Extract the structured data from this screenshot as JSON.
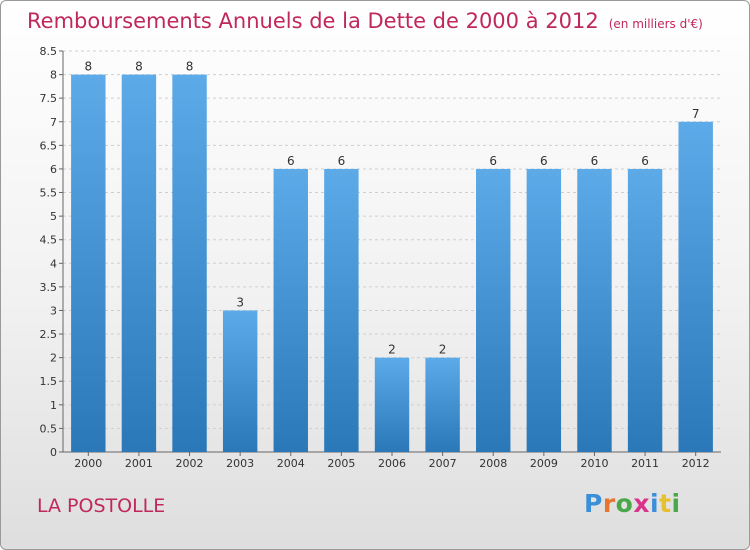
{
  "header": {
    "title": "Remboursements Annuels de la Dette de 2000 à 2012",
    "unit": "(en milliers d'€)"
  },
  "footer": {
    "commune": "LA POSTOLLE",
    "logo": [
      "P",
      "r",
      "o",
      "x",
      "i",
      "t",
      "i"
    ]
  },
  "colors": {
    "title": "#c0285c",
    "bar_light": "#5caae8",
    "bar_dark": "#2a78b8"
  },
  "chart_data": {
    "type": "bar",
    "title": "Remboursements Annuels de la Dette de 2000 à 2012",
    "subtitle": "(en milliers d'€)",
    "xlabel": "",
    "ylabel": "",
    "categories": [
      "2000",
      "2001",
      "2002",
      "2003",
      "2004",
      "2005",
      "2006",
      "2007",
      "2008",
      "2009",
      "2010",
      "2011",
      "2012"
    ],
    "values": [
      8,
      8,
      8,
      3,
      6,
      6,
      2,
      2,
      6,
      6,
      6,
      6,
      7
    ],
    "data_labels": [
      "8",
      "8",
      "8",
      "3",
      "6",
      "6",
      "2",
      "2",
      "6",
      "6",
      "6",
      "6",
      "7"
    ],
    "ylim": [
      0,
      8.5
    ],
    "yticks": [
      "0",
      "0.5",
      "1",
      "1.5",
      "2",
      "2.5",
      "3",
      "3.5",
      "4",
      "4.5",
      "5",
      "5.5",
      "6",
      "6.5",
      "7",
      "7.5",
      "8",
      "8.5"
    ],
    "grid": true,
    "legend": "none"
  }
}
